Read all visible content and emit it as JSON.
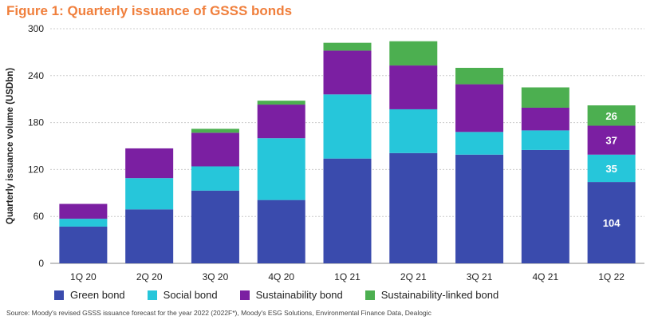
{
  "figure": {
    "title": "Figure 1: Quarterly issuance of GSSS bonds",
    "title_color": "#f07f3c",
    "source": "Source: Moody's revised GSSS issuance forecast for the year 2022 (2022F*), Moody's ESG Solutions, Environmental Finance Data, Dealogic"
  },
  "chart_data": {
    "type": "bar",
    "stacked": true,
    "ylabel": "Quarterly issuance volume (USDbn)",
    "xlabel": "",
    "ylim": [
      0,
      300
    ],
    "yticks": [
      "0",
      "60",
      "120",
      "180",
      "240",
      "300"
    ],
    "ytick_values": [
      0,
      60,
      120,
      180,
      240,
      300
    ],
    "grid": "horizontal",
    "legend_position": "bottom",
    "categories": [
      "1Q 20",
      "2Q 20",
      "3Q 20",
      "4Q 20",
      "1Q 21",
      "2Q 21",
      "3Q 21",
      "4Q 21",
      "1Q 22"
    ],
    "series": [
      {
        "name": "Green bond",
        "color": "#3a4bad",
        "values": [
          47,
          69,
          93,
          81,
          134,
          141,
          139,
          145,
          104
        ]
      },
      {
        "name": "Social bond",
        "color": "#26c6da",
        "values": [
          10,
          40,
          31,
          79,
          82,
          56,
          29,
          25,
          35
        ]
      },
      {
        "name": "Sustainability bond",
        "color": "#7b1fa2",
        "values": [
          19,
          38,
          43,
          43,
          56,
          56,
          61,
          29,
          37
        ]
      },
      {
        "name": "Sustainability-linked bond",
        "color": "#4caf50",
        "values": [
          0,
          0,
          5,
          5,
          10,
          31,
          21,
          26,
          26
        ]
      }
    ],
    "data_labels": [
      {
        "category": "1Q 22",
        "series": "Green bond",
        "text": "104"
      },
      {
        "category": "1Q 22",
        "series": "Social bond",
        "text": "35"
      },
      {
        "category": "1Q 22",
        "series": "Sustainability bond",
        "text": "37"
      },
      {
        "category": "1Q 22",
        "series": "Sustainability-linked bond",
        "text": "26"
      }
    ]
  }
}
